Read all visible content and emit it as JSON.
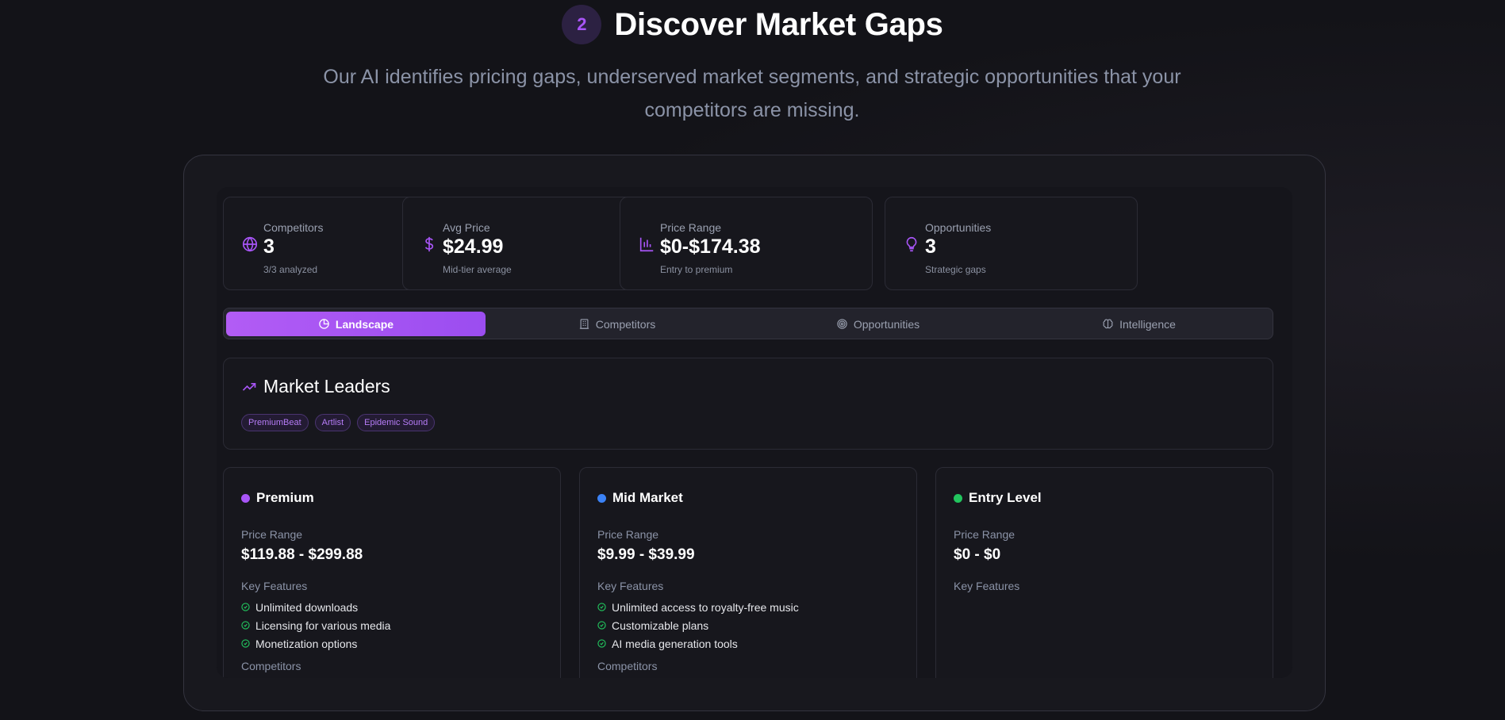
{
  "hero": {
    "step_number": "2",
    "title": "Discover Market Gaps",
    "subtitle": "Our AI identifies pricing gaps, underserved market segments, and strategic opportunities that your competitors are missing."
  },
  "stats": [
    {
      "label": "Competitors",
      "value": "3",
      "sub": "3/3 analyzed",
      "icon": "globe-icon"
    },
    {
      "label": "Avg Price",
      "value": "$24.99",
      "sub": "Mid-tier average",
      "icon": "dollar-icon"
    },
    {
      "label": "Price Range",
      "value": "$0-$174.38",
      "sub": "Entry to premium",
      "icon": "bar-chart-icon"
    },
    {
      "label": "Opportunities",
      "value": "3",
      "sub": "Strategic gaps",
      "icon": "lightbulb-icon"
    }
  ],
  "tabs": [
    {
      "label": "Landscape",
      "icon": "pie-chart-icon",
      "active": true
    },
    {
      "label": "Competitors",
      "icon": "building-icon",
      "active": false
    },
    {
      "label": "Opportunities",
      "icon": "target-icon",
      "active": false
    },
    {
      "label": "Intelligence",
      "icon": "brain-icon",
      "active": false
    }
  ],
  "market_leaders": {
    "title": "Market Leaders",
    "icon": "trending-up-icon",
    "leaders": [
      "PremiumBeat",
      "Artlist",
      "Epidemic Sound"
    ]
  },
  "segments": [
    {
      "name": "Premium",
      "color": "#a855f7",
      "price_range_label": "Price Range",
      "price_range": "$119.88 - $299.88",
      "features_label": "Key Features",
      "features": [
        "Unlimited downloads",
        "Licensing for various media",
        "Monetization options"
      ],
      "competitors_label": "Competitors"
    },
    {
      "name": "Mid Market",
      "color": "#3b82f6",
      "price_range_label": "Price Range",
      "price_range": "$9.99 - $39.99",
      "features_label": "Key Features",
      "features": [
        "Unlimited access to royalty-free music",
        "Customizable plans",
        "AI media generation tools"
      ],
      "competitors_label": "Competitors"
    },
    {
      "name": "Entry Level",
      "color": "#22c55e",
      "price_range_label": "Price Range",
      "price_range": "$0 - $0",
      "features_label": "Key Features",
      "features": [],
      "competitors_label": ""
    }
  ],
  "colors": {
    "accent": "#a855f7",
    "check": "#22c55e",
    "background": "#131318"
  }
}
